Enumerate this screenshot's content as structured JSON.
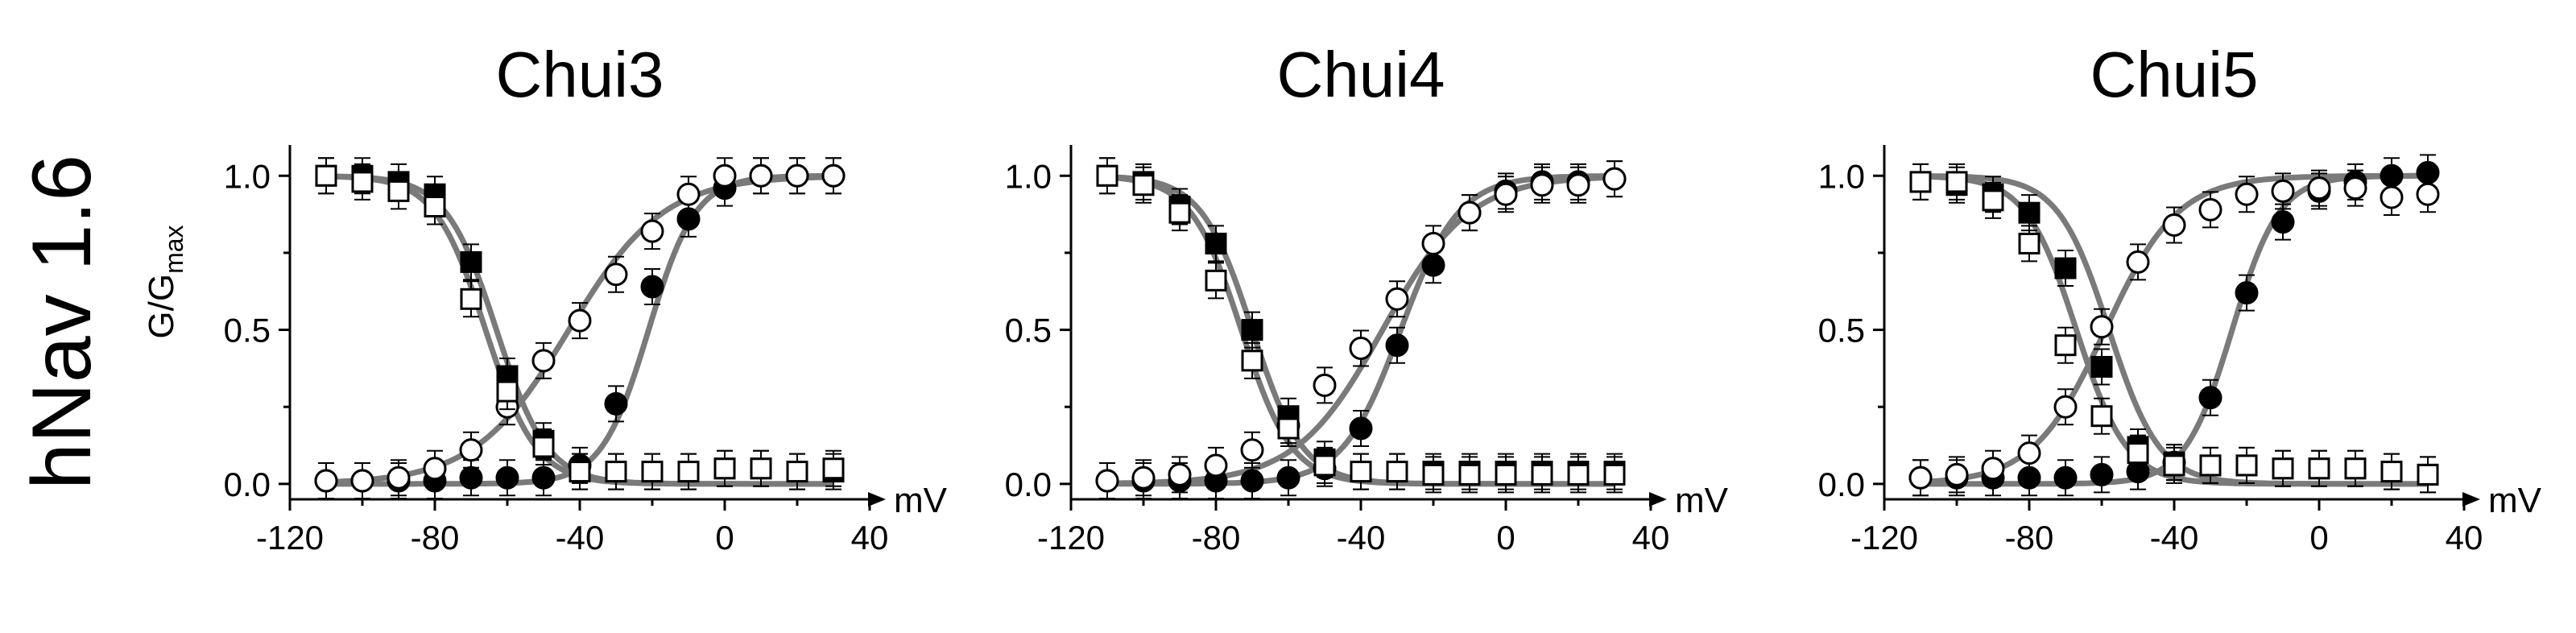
{
  "row_label": "hNav 1.6",
  "ylabel_main": "G/G",
  "ylabel_sub": "max",
  "chart_data": [
    {
      "type": "scatter",
      "title": "Chui3",
      "xlabel": "mV",
      "ylabel": "G/Gmax",
      "xlim": [
        -120,
        40
      ],
      "ylim": [
        -0.05,
        1.1
      ],
      "x_ticks": [
        "-120",
        "-80",
        "-40",
        "0",
        "40"
      ],
      "y_ticks": [
        "0.0",
        "0.5",
        "1.0"
      ],
      "series": [
        {
          "marker": "filled-circle",
          "x": [
            -110,
            -100,
            -90,
            -80,
            -70,
            -60,
            -50,
            -40,
            -30,
            -20,
            -10,
            0,
            10,
            20,
            30
          ],
          "y": [
            0.01,
            0.01,
            0.01,
            0.01,
            0.02,
            0.02,
            0.02,
            0.06,
            0.26,
            0.64,
            0.86,
            0.96,
            1.0,
            1.0,
            1.0
          ]
        },
        {
          "marker": "open-circle",
          "x": [
            -110,
            -100,
            -90,
            -80,
            -70,
            -60,
            -50,
            -40,
            -30,
            -20,
            -10,
            0,
            10,
            20,
            30
          ],
          "y": [
            0.01,
            0.01,
            0.02,
            0.05,
            0.11,
            0.25,
            0.4,
            0.53,
            0.68,
            0.82,
            0.94,
            1.0,
            1.0,
            1.0,
            1.0
          ]
        },
        {
          "marker": "filled-square",
          "x": [
            -110,
            -100,
            -90,
            -80,
            -70,
            -60,
            -50,
            -40,
            -30,
            -20,
            -10,
            0,
            10,
            20,
            30
          ],
          "y": [
            1.0,
            1.0,
            0.98,
            0.94,
            0.72,
            0.35,
            0.14,
            0.04,
            0.04,
            0.04,
            0.04,
            0.05,
            0.05,
            0.04,
            0.04
          ]
        },
        {
          "marker": "open-square",
          "x": [
            -110,
            -100,
            -90,
            -80,
            -70,
            -60,
            -50,
            -40,
            -30,
            -20,
            -10,
            0,
            10,
            20,
            30
          ],
          "y": [
            1.0,
            0.98,
            0.95,
            0.9,
            0.6,
            0.3,
            0.12,
            0.04,
            0.04,
            0.04,
            0.04,
            0.05,
            0.05,
            0.04,
            0.05
          ]
        }
      ],
      "fits": [
        {
          "type": "activation",
          "v_half": -21,
          "k": 6.5
        },
        {
          "type": "activation",
          "v_half": -43,
          "k": 13
        },
        {
          "type": "inactivation",
          "v_half": -63,
          "k": 7
        },
        {
          "type": "inactivation",
          "v_half": -66,
          "k": 7
        }
      ]
    },
    {
      "type": "scatter",
      "title": "Chui4",
      "xlabel": "mV",
      "ylabel": "G/Gmax",
      "xlim": [
        -120,
        40
      ],
      "ylim": [
        -0.05,
        1.1
      ],
      "x_ticks": [
        "-120",
        "-80",
        "-40",
        "0",
        "40"
      ],
      "y_ticks": [
        "0.0",
        "0.5",
        "1.0"
      ],
      "series": [
        {
          "marker": "filled-circle",
          "x": [
            -110,
            -100,
            -90,
            -80,
            -70,
            -60,
            -50,
            -40,
            -30,
            -20,
            -10,
            0,
            10,
            20,
            30
          ],
          "y": [
            0.01,
            0.01,
            0.01,
            0.01,
            0.01,
            0.02,
            0.05,
            0.18,
            0.45,
            0.71,
            0.88,
            0.95,
            0.98,
            0.98,
            0.99
          ]
        },
        {
          "marker": "open-circle",
          "x": [
            -110,
            -100,
            -90,
            -80,
            -70,
            -60,
            -50,
            -40,
            -30,
            -20,
            -10,
            0,
            10,
            20,
            30
          ],
          "y": [
            0.01,
            0.02,
            0.03,
            0.06,
            0.11,
            0.19,
            0.32,
            0.44,
            0.6,
            0.78,
            0.88,
            0.94,
            0.97,
            0.97,
            0.99
          ]
        },
        {
          "marker": "filled-square",
          "x": [
            -110,
            -100,
            -90,
            -80,
            -70,
            -60,
            -50,
            -40,
            -30,
            -20,
            -10,
            0,
            10,
            20,
            30
          ],
          "y": [
            1.0,
            0.98,
            0.9,
            0.78,
            0.5,
            0.22,
            0.08,
            0.04,
            0.04,
            0.04,
            0.04,
            0.04,
            0.04,
            0.04,
            0.04
          ]
        },
        {
          "marker": "open-square",
          "x": [
            -110,
            -100,
            -90,
            -80,
            -70,
            -60,
            -50,
            -40,
            -30,
            -20,
            -10,
            0,
            10,
            20,
            30
          ],
          "y": [
            1.0,
            0.97,
            0.88,
            0.66,
            0.4,
            0.18,
            0.06,
            0.04,
            0.04,
            0.03,
            0.03,
            0.03,
            0.03,
            0.03,
            0.03
          ]
        }
      ],
      "fits": [
        {
          "type": "activation",
          "v_half": -29,
          "k": 8
        },
        {
          "type": "activation",
          "v_half": -34,
          "k": 12
        },
        {
          "type": "inactivation",
          "v_half": -70,
          "k": 7
        },
        {
          "type": "inactivation",
          "v_half": -73,
          "k": 7
        }
      ]
    },
    {
      "type": "scatter",
      "title": "Chui5",
      "xlabel": "mV",
      "ylabel": "G/Gmax",
      "xlim": [
        -120,
        40
      ],
      "ylim": [
        -0.05,
        1.1
      ],
      "x_ticks": [
        "-120",
        "-80",
        "-40",
        "0",
        "40"
      ],
      "y_ticks": [
        "0.0",
        "0.5",
        "1.0"
      ],
      "series": [
        {
          "marker": "filled-circle",
          "x": [
            -110,
            -100,
            -90,
            -80,
            -70,
            -60,
            -50,
            -40,
            -30,
            -20,
            -10,
            0,
            10,
            20,
            30
          ],
          "y": [
            0.02,
            0.02,
            0.02,
            0.02,
            0.02,
            0.03,
            0.04,
            0.07,
            0.28,
            0.62,
            0.85,
            0.95,
            0.98,
            1.0,
            1.01
          ]
        },
        {
          "marker": "open-circle",
          "x": [
            -110,
            -100,
            -90,
            -80,
            -70,
            -60,
            -50,
            -40,
            -30,
            -20,
            -10,
            0,
            10,
            20,
            30
          ],
          "y": [
            0.02,
            0.03,
            0.05,
            0.1,
            0.25,
            0.51,
            0.72,
            0.84,
            0.89,
            0.94,
            0.95,
            0.96,
            0.96,
            0.93,
            0.94
          ]
        },
        {
          "marker": "filled-square",
          "x": [
            -110,
            -100,
            -90,
            -80,
            -70,
            -60,
            -50,
            -40,
            -30,
            -20,
            -10,
            0,
            10,
            20,
            30
          ],
          "y": [
            0.98,
            0.97,
            0.94,
            0.88,
            0.7,
            0.38,
            0.12,
            0.07,
            0.06,
            0.06,
            0.05,
            0.05,
            0.05,
            0.04,
            0.03
          ]
        },
        {
          "marker": "open-square",
          "x": [
            -110,
            -100,
            -90,
            -80,
            -70,
            -60,
            -50,
            -40,
            -30,
            -20,
            -10,
            0,
            10,
            20,
            30
          ],
          "y": [
            0.98,
            0.98,
            0.92,
            0.78,
            0.45,
            0.22,
            0.1,
            0.06,
            0.06,
            0.06,
            0.05,
            0.05,
            0.05,
            0.04,
            0.03
          ]
        }
      ],
      "fits": [
        {
          "type": "activation",
          "v_half": -24,
          "k": 6.5
        },
        {
          "type": "activation",
          "v_half": -59,
          "k": 10
        },
        {
          "type": "inactivation",
          "v_half": -58,
          "k": 7
        },
        {
          "type": "inactivation",
          "v_half": -67,
          "k": 7
        }
      ]
    }
  ]
}
